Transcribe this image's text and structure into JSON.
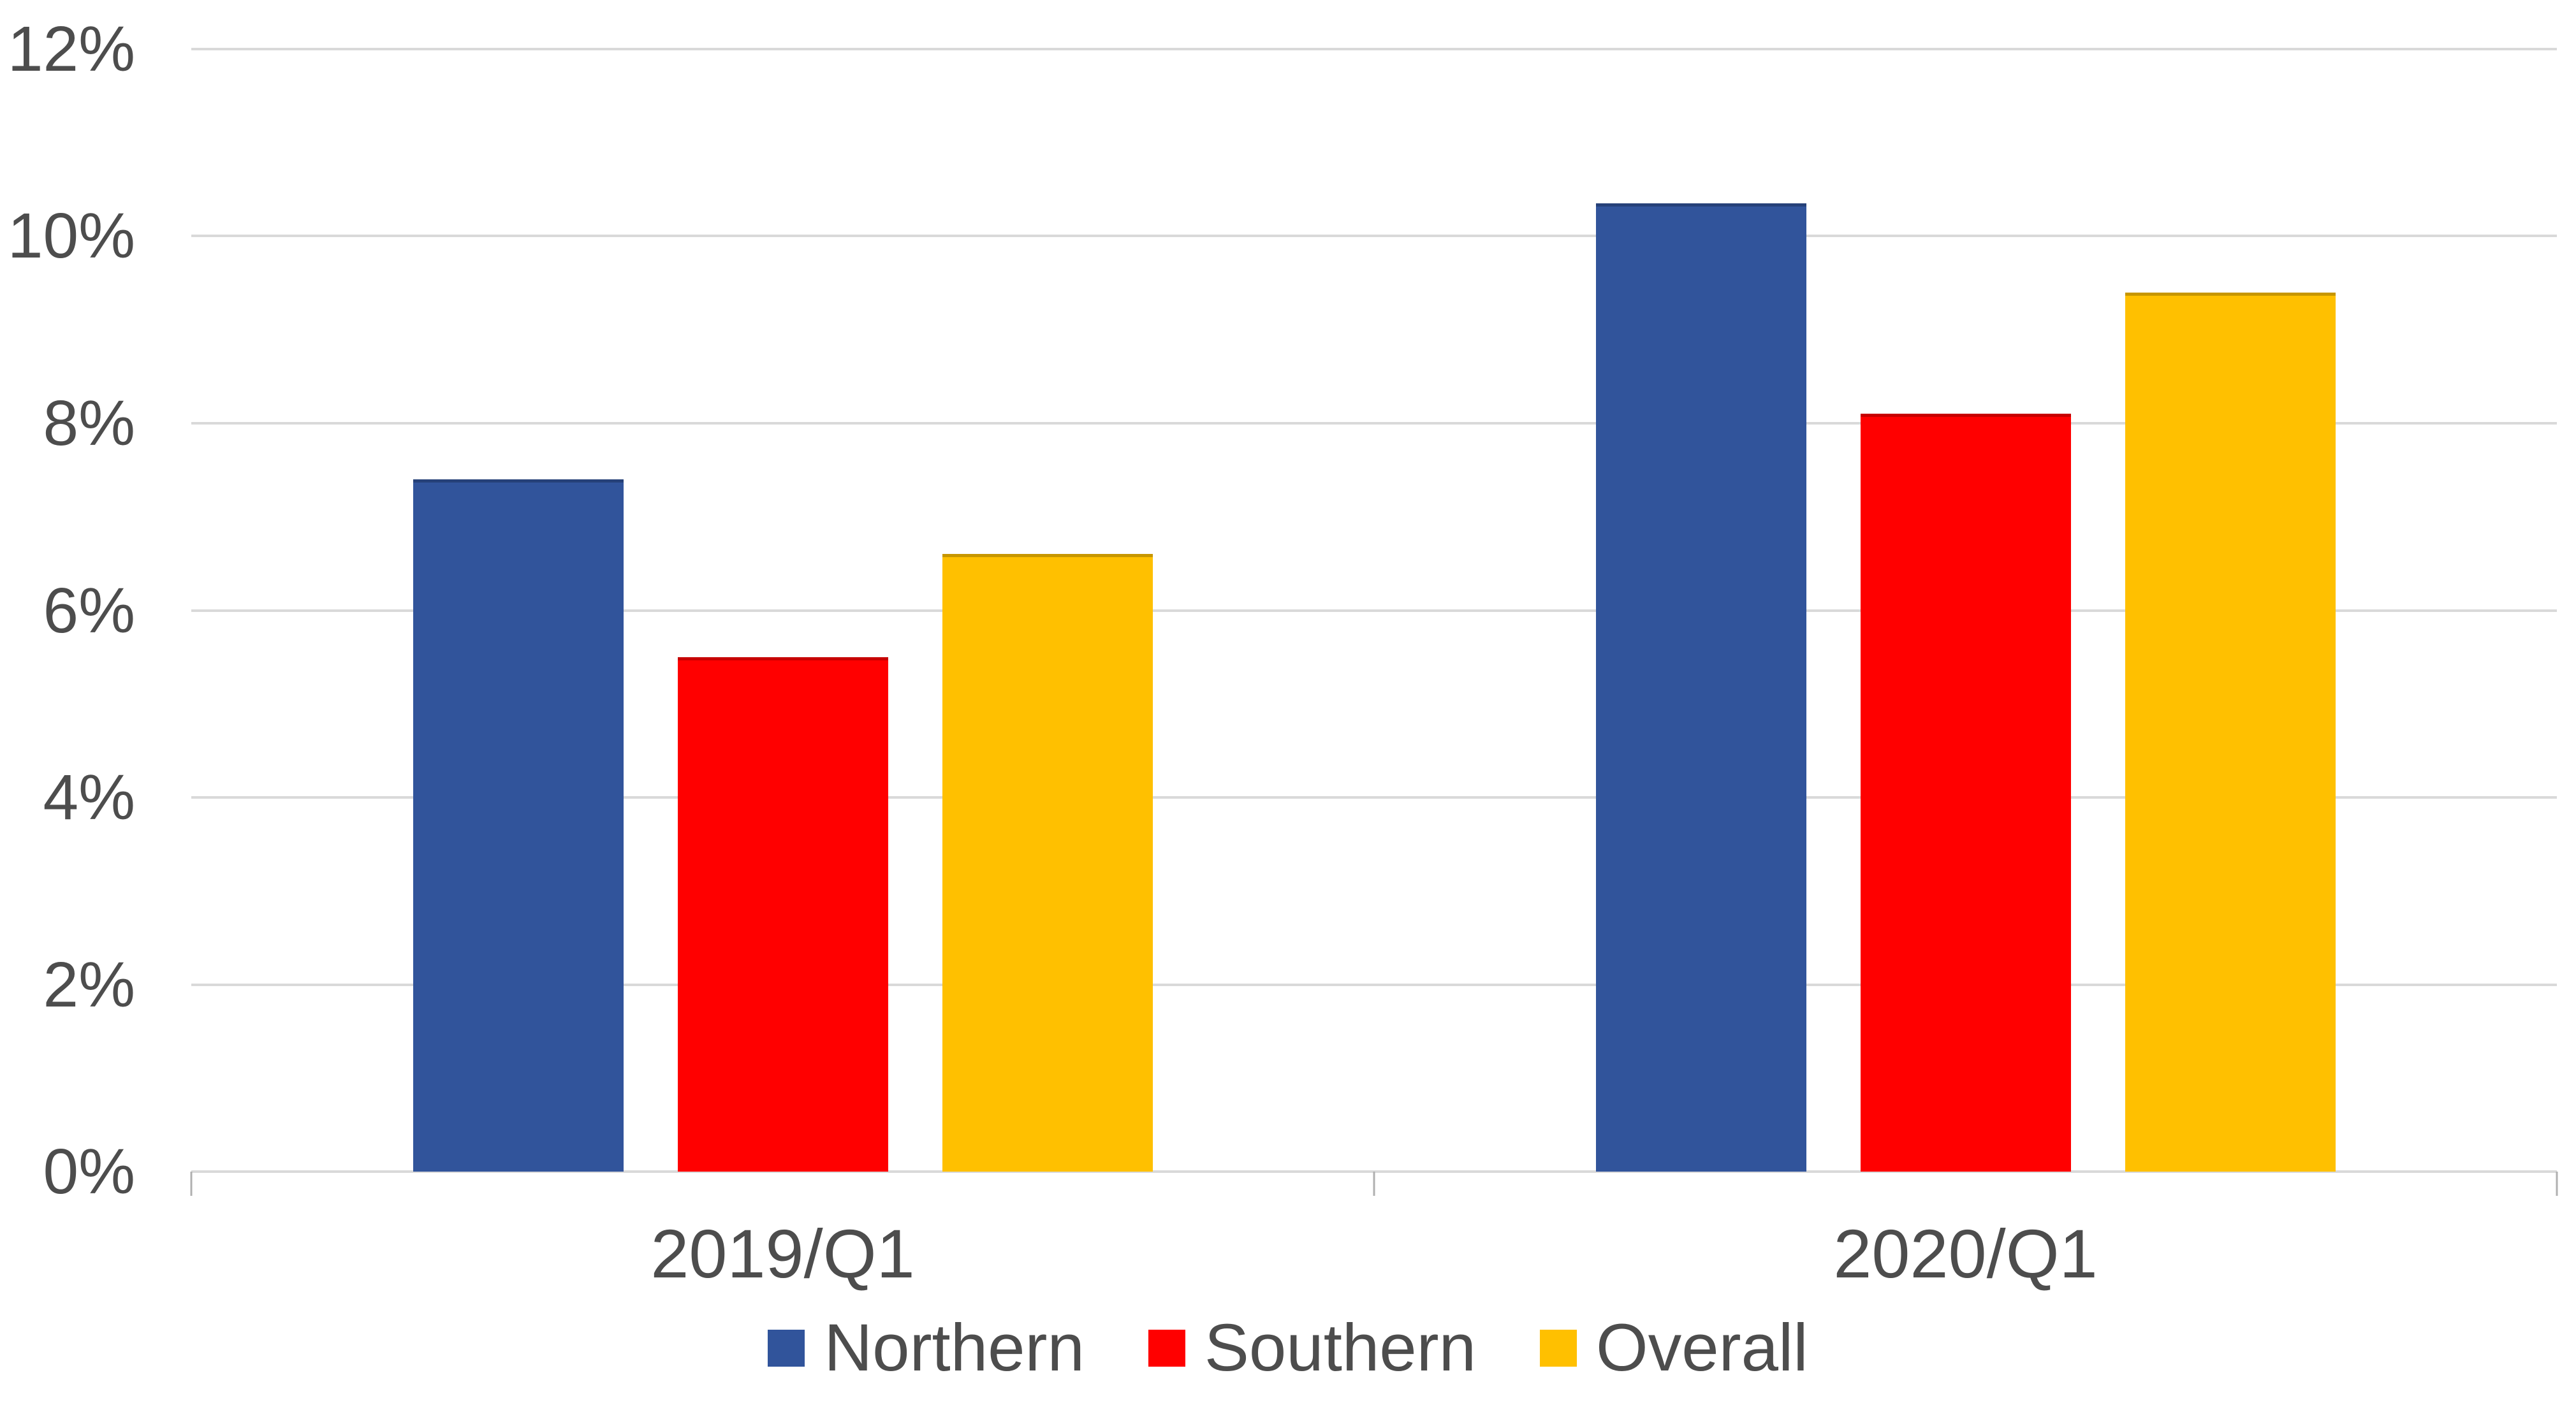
{
  "chart_data": {
    "type": "bar",
    "title": "",
    "categories": [
      "2019/Q1",
      "2020/Q1"
    ],
    "series": [
      {
        "name": "Northern",
        "color": "#31549B",
        "values": [
          7.4,
          10.35
        ]
      },
      {
        "name": "Southern",
        "color": "#FF0000",
        "values": [
          5.5,
          8.1
        ]
      },
      {
        "name": "Overall",
        "color": "#FFC000",
        "values": [
          6.6,
          9.4
        ]
      }
    ],
    "y_axis": {
      "min": 0,
      "max": 12,
      "tick_step": 2,
      "tick_labels": [
        "0%",
        "2%",
        "4%",
        "6%",
        "8%",
        "10%",
        "12%"
      ],
      "unit": "percent"
    },
    "x_axis": {
      "tick_positions_pct": [
        0,
        50,
        100
      ]
    },
    "grid": true,
    "legend_position": "bottom",
    "colors": {
      "gridline": "#D9D9D9",
      "axis_line": "#D9D9D9",
      "tick_mark": "#B0B0B0",
      "text": "#4d4d4d",
      "background": "#FFFFFF"
    }
  }
}
